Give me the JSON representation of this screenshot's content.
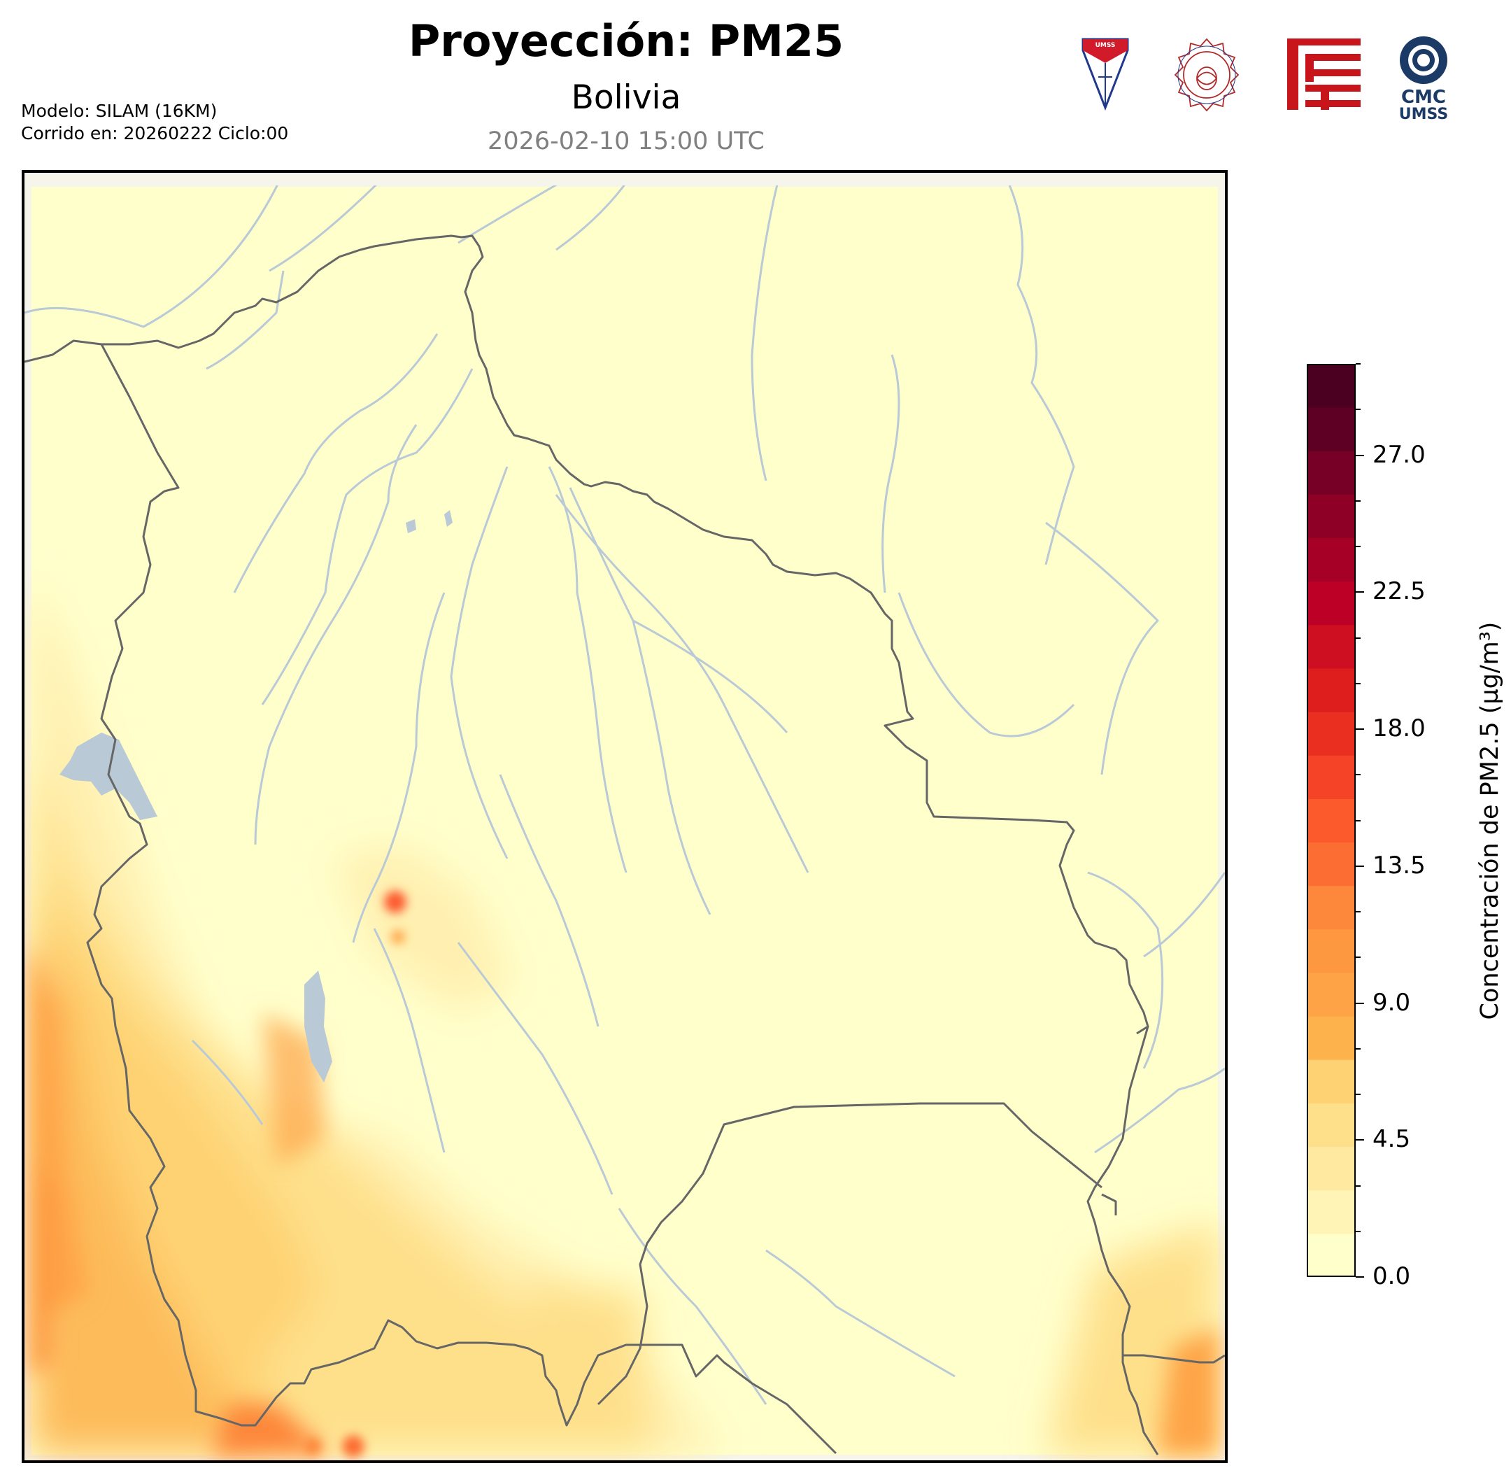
{
  "header": {
    "title": "Proyección: PM25",
    "subtitle": "Bolivia",
    "timestamp": "2026-02-10 15:00 UTC",
    "model_line": "Modelo: SILAM (16KM)",
    "run_line": "Corrido en: 20260222 Ciclo:00"
  },
  "logos": {
    "umss_shield_text": "UMSS",
    "physics_seal_text": "DEPARTAMENTO DE FÍSICA",
    "cmc_line1": "CMC",
    "cmc_line2": "UMSS"
  },
  "colorbar": {
    "label": "Concentración de PM2.5 (µg/m³)",
    "ticks": [
      "0.0",
      "4.5",
      "9.0",
      "13.5",
      "18.0",
      "22.5",
      "27.0"
    ],
    "tick_values": [
      0.0,
      4.5,
      9.0,
      13.5,
      18.0,
      22.5,
      27.0
    ],
    "min": 0.0,
    "max": 30.0,
    "colors": [
      "#ffffcc",
      "#fff3b6",
      "#ffe9a0",
      "#fee08b",
      "#fed272",
      "#feb24c",
      "#fea446",
      "#fd9740",
      "#fd873a",
      "#fc6d33",
      "#fc5a2d",
      "#f44327",
      "#ea2f21",
      "#de1e1c",
      "#cd0f21",
      "#bd0026",
      "#a60026",
      "#8e0026",
      "#760026",
      "#5e0024",
      "#4c0021"
    ]
  },
  "map": {
    "background_color": "#ffffcc",
    "river_color": "#b9c9d6",
    "border_color": "#666666"
  }
}
